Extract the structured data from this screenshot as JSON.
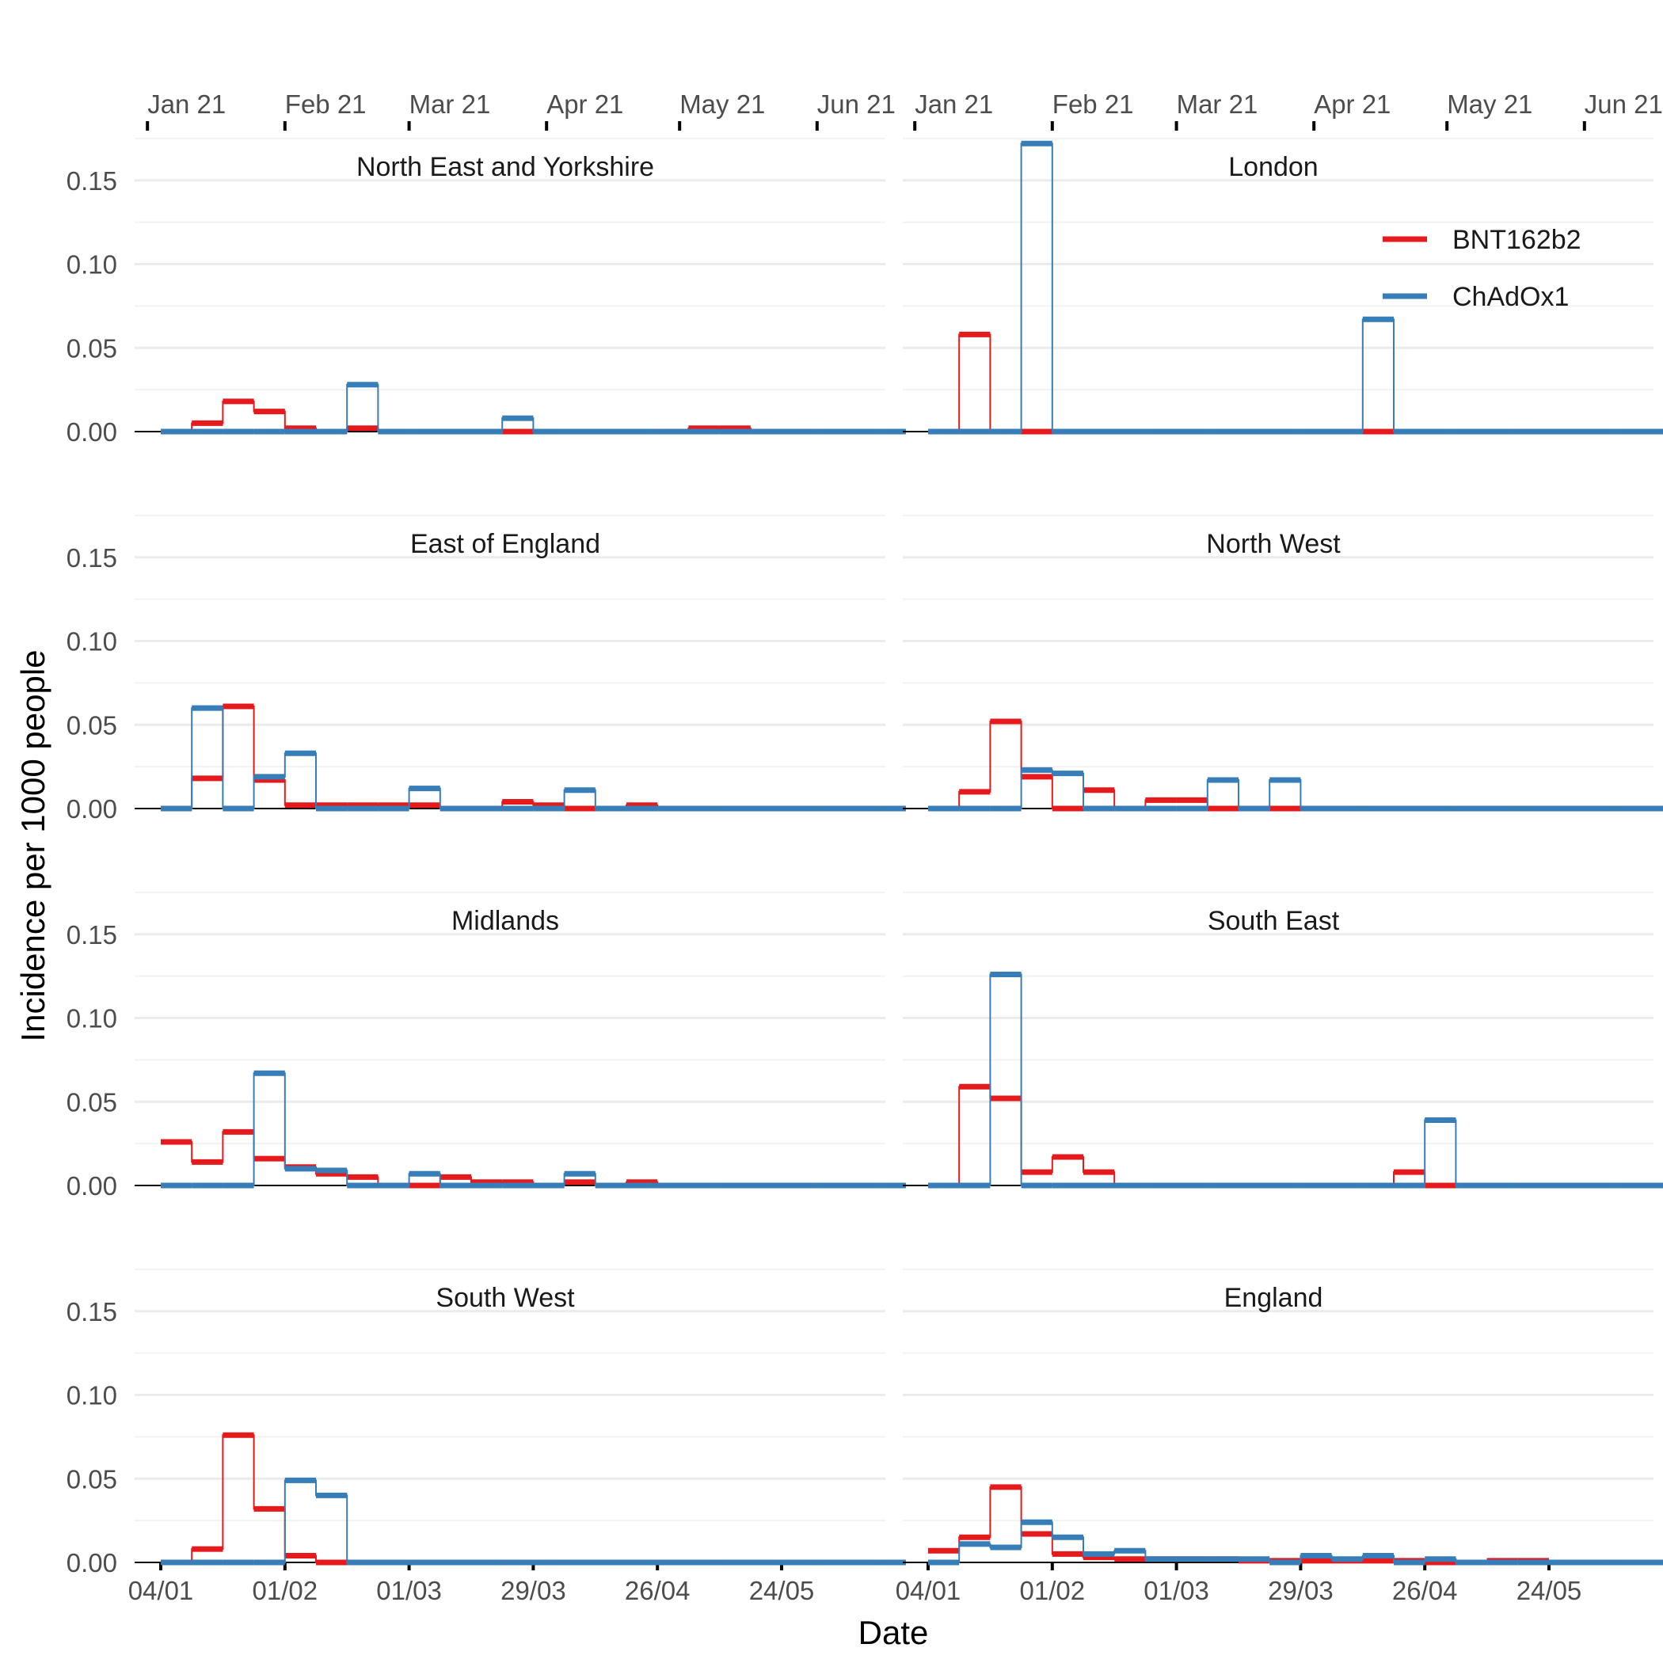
{
  "chart_data": {
    "type": "line",
    "xlabel": "Date",
    "ylabel": "Incidence per 1000 people",
    "ylim": [
      0,
      0.175
    ],
    "y_ticks": [
      "0.00",
      "0.05",
      "0.10",
      "0.15"
    ],
    "y_tick_values": [
      0,
      0.05,
      0.1,
      0.15
    ],
    "x_ticks_bottom": [
      {
        "date": "2021-01-04",
        "label": "04/01"
      },
      {
        "date": "2021-02-01",
        "label": "01/02"
      },
      {
        "date": "2021-03-01",
        "label": "01/03"
      },
      {
        "date": "2021-03-29",
        "label": "29/03"
      },
      {
        "date": "2021-04-26",
        "label": "26/04"
      },
      {
        "date": "2021-05-24",
        "label": "24/05"
      }
    ],
    "x_ticks_top": [
      {
        "date": "2021-01-01",
        "label": "Jan 21"
      },
      {
        "date": "2021-02-01",
        "label": "Feb 21"
      },
      {
        "date": "2021-03-01",
        "label": "Mar 21"
      },
      {
        "date": "2021-04-01",
        "label": "Apr 21"
      },
      {
        "date": "2021-05-01",
        "label": "May 21"
      },
      {
        "date": "2021-06-01",
        "label": "Jun 21"
      }
    ],
    "bins": [
      "2021-01-04",
      "2021-01-11",
      "2021-01-18",
      "2021-01-25",
      "2021-02-01",
      "2021-02-08",
      "2021-02-15",
      "2021-02-22",
      "2021-03-01",
      "2021-03-08",
      "2021-03-15",
      "2021-03-22",
      "2021-03-29",
      "2021-04-05",
      "2021-04-12",
      "2021-04-19",
      "2021-04-26",
      "2021-05-03",
      "2021-05-10",
      "2021-05-17",
      "2021-05-24",
      "2021-05-31",
      "2021-06-07",
      "2021-06-14"
    ],
    "legend": {
      "position": "top-right of London panel",
      "entries": [
        {
          "name": "BNT162b2",
          "color": "#e41a1c"
        },
        {
          "name": "ChAdOx1",
          "color": "#377eb8"
        }
      ]
    },
    "series_colors": {
      "BNT162b2": "#e41a1c",
      "ChAdOx1": "#377eb8"
    },
    "panels": [
      {
        "title": "North East and Yorkshire",
        "series": [
          {
            "name": "BNT162b2",
            "values": [
              0,
              0.005,
              0.018,
              0.012,
              0.002,
              0,
              0.002,
              0,
              0,
              0,
              0,
              0,
              0,
              0,
              0,
              0,
              0,
              0.002,
              0.002,
              0,
              0,
              0,
              0,
              0
            ]
          },
          {
            "name": "ChAdOx1",
            "values": [
              0,
              0,
              0,
              0,
              0,
              0,
              0.028,
              0,
              0,
              0,
              0,
              0.008,
              0,
              0,
              0,
              0,
              0,
              0,
              0,
              0,
              0,
              0,
              0,
              0
            ]
          }
        ]
      },
      {
        "title": "London",
        "series": [
          {
            "name": "BNT162b2",
            "values": [
              0,
              0.058,
              0,
              0,
              0,
              0,
              0,
              0,
              0,
              0,
              0,
              0,
              0,
              0,
              0,
              0,
              0,
              0,
              0,
              0,
              0,
              0,
              0,
              0
            ]
          },
          {
            "name": "ChAdOx1",
            "values": [
              0,
              0,
              0,
              0.172,
              0,
              0,
              0,
              0,
              0,
              0,
              0,
              0,
              0,
              0,
              0.067,
              0,
              0,
              0,
              0,
              0,
              0,
              0,
              0,
              0
            ]
          }
        ]
      },
      {
        "title": "East of England",
        "series": [
          {
            "name": "BNT162b2",
            "values": [
              0,
              0.018,
              0.061,
              0.017,
              0.002,
              0.002,
              0.002,
              0.002,
              0.002,
              0,
              0,
              0.004,
              0.002,
              0,
              0,
              0.002,
              0,
              0,
              0,
              0,
              0,
              0,
              0,
              0
            ]
          },
          {
            "name": "ChAdOx1",
            "values": [
              0,
              0.06,
              0,
              0.019,
              0.033,
              0,
              0,
              0,
              0.012,
              0,
              0,
              0,
              0,
              0.011,
              0,
              0,
              0,
              0,
              0,
              0,
              0,
              0,
              0,
              0
            ]
          }
        ]
      },
      {
        "title": "North West",
        "series": [
          {
            "name": "BNT162b2",
            "values": [
              0,
              0.01,
              0.052,
              0.019,
              0,
              0.011,
              0,
              0.005,
              0.005,
              0,
              0,
              0,
              0,
              0,
              0,
              0,
              0,
              0,
              0,
              0,
              0,
              0,
              0,
              0
            ]
          },
          {
            "name": "ChAdOx1",
            "values": [
              0,
              0,
              0,
              0.023,
              0.021,
              0,
              0,
              0,
              0,
              0.017,
              0,
              0.017,
              0,
              0,
              0,
              0,
              0,
              0,
              0,
              0,
              0,
              0,
              0,
              0
            ]
          }
        ]
      },
      {
        "title": "Midlands",
        "series": [
          {
            "name": "BNT162b2",
            "values": [
              0.026,
              0.014,
              0.032,
              0.016,
              0.011,
              0.007,
              0.005,
              0,
              0,
              0.005,
              0.002,
              0.002,
              0,
              0.002,
              0,
              0.002,
              0,
              0,
              0,
              0,
              0,
              0,
              0,
              0
            ]
          },
          {
            "name": "ChAdOx1",
            "values": [
              0,
              0,
              0,
              0.067,
              0.01,
              0.009,
              0,
              0,
              0.007,
              0,
              0,
              0,
              0,
              0.007,
              0,
              0,
              0,
              0,
              0,
              0,
              0,
              0,
              0,
              0
            ]
          }
        ]
      },
      {
        "title": "South East",
        "series": [
          {
            "name": "BNT162b2",
            "values": [
              0,
              0.059,
              0.052,
              0.008,
              0.017,
              0.008,
              0,
              0,
              0,
              0,
              0,
              0,
              0,
              0,
              0,
              0.008,
              0,
              0,
              0,
              0,
              0,
              0,
              0,
              0
            ]
          },
          {
            "name": "ChAdOx1",
            "values": [
              0,
              0,
              0.126,
              0,
              0,
              0,
              0,
              0,
              0,
              0,
              0,
              0,
              0,
              0,
              0,
              0,
              0.039,
              0,
              0,
              0,
              0,
              0,
              0,
              0
            ]
          }
        ]
      },
      {
        "title": "South West",
        "series": [
          {
            "name": "BNT162b2",
            "values": [
              0,
              0.008,
              0.076,
              0.032,
              0.004,
              0,
              0,
              0,
              0,
              0,
              0,
              0,
              0,
              0,
              0,
              0,
              0,
              0,
              0,
              0,
              0,
              0,
              0,
              0
            ]
          },
          {
            "name": "ChAdOx1",
            "values": [
              0,
              0,
              0,
              0,
              0.049,
              0.04,
              0,
              0,
              0,
              0,
              0,
              0,
              0,
              0,
              0,
              0,
              0,
              0,
              0,
              0,
              0,
              0,
              0,
              0
            ]
          }
        ]
      },
      {
        "title": "England",
        "series": [
          {
            "name": "BNT162b2",
            "values": [
              0.007,
              0.015,
              0.045,
              0.017,
              0.005,
              0.003,
              0.002,
              0.002,
              0.002,
              0.002,
              0.001,
              0.001,
              0.001,
              0.001,
              0.001,
              0.001,
              0,
              0,
              0.001,
              0.001,
              0,
              0,
              0,
              0
            ]
          },
          {
            "name": "ChAdOx1",
            "values": [
              0,
              0.011,
              0.009,
              0.024,
              0.015,
              0.005,
              0.007,
              0.002,
              0.002,
              0.002,
              0.002,
              0,
              0.004,
              0.002,
              0.004,
              0,
              0.002,
              0,
              0,
              0,
              0,
              0,
              0,
              0
            ]
          }
        ]
      }
    ]
  }
}
